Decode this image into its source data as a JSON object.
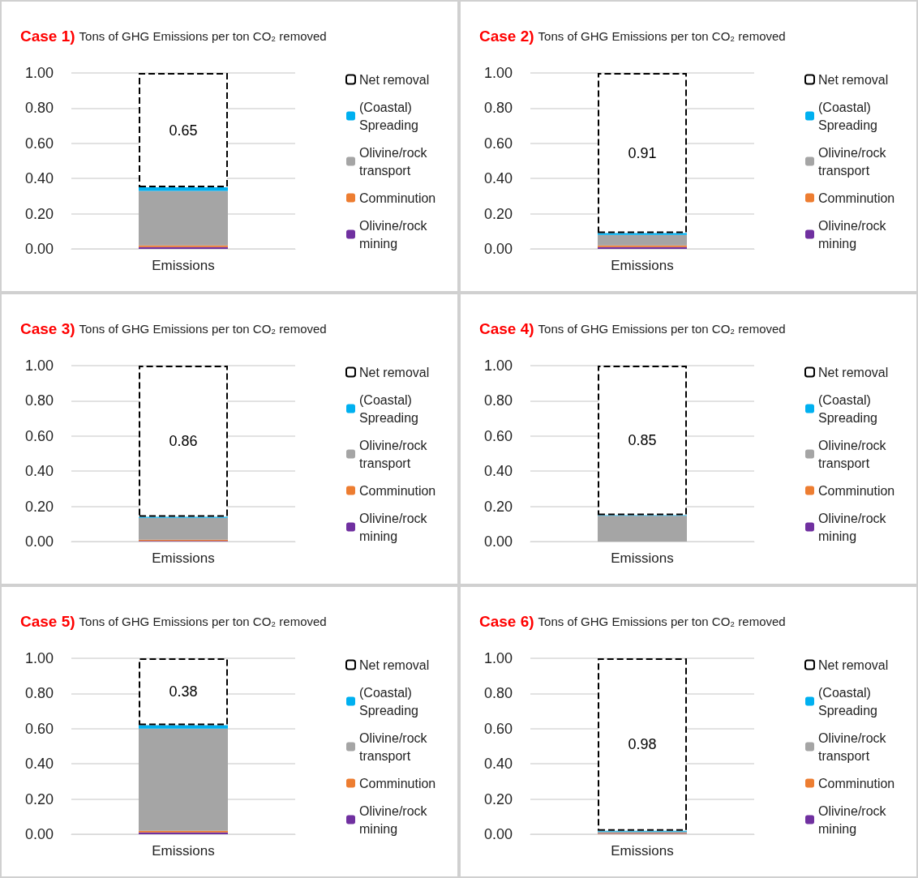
{
  "chart_data": [
    {
      "type": "bar",
      "title": "Case 1)",
      "subtitle": "Tons of GHG Emissions per ton CO₂ removed",
      "categories": [
        "Emissions"
      ],
      "stacked": true,
      "ylim": [
        0,
        1
      ],
      "yticks": [
        {
          "value": 0,
          "label": "0.00"
        },
        {
          "value": 0.2,
          "label": "0.20"
        },
        {
          "value": 0.4,
          "label": "0.40"
        },
        {
          "value": 0.6,
          "label": "0.60"
        },
        {
          "value": 0.8,
          "label": "0.80"
        },
        {
          "value": 1,
          "label": "1.00"
        }
      ],
      "grid": "y",
      "legend": "right",
      "series": [
        {
          "name": "Olivine/rock mining",
          "color": "#7030a0",
          "values": [
            0.01
          ]
        },
        {
          "name": "Comminution",
          "color": "#ed7d31",
          "values": [
            0.01
          ]
        },
        {
          "name": "Olivine/rock transport",
          "color": "#a5a5a5",
          "values": [
            0.31
          ]
        },
        {
          "name": "(Coastal) Spreading",
          "color": "#00b0f0",
          "values": [
            0.02
          ]
        },
        {
          "name": "Net removal",
          "color": "#000000",
          "line_style": "dashed",
          "values": [
            0.65
          ],
          "value_labels": [
            "0.65"
          ]
        }
      ]
    },
    {
      "type": "bar",
      "title": "Case 2)",
      "subtitle": "Tons of GHG Emissions per ton CO₂ removed",
      "categories": [
        "Emissions"
      ],
      "stacked": true,
      "ylim": [
        0,
        1
      ],
      "yticks": [
        {
          "value": 0,
          "label": "0.00"
        },
        {
          "value": 0.2,
          "label": "0.20"
        },
        {
          "value": 0.4,
          "label": "0.40"
        },
        {
          "value": 0.6,
          "label": "0.60"
        },
        {
          "value": 0.8,
          "label": "0.80"
        },
        {
          "value": 1,
          "label": "1.00"
        }
      ],
      "grid": "y",
      "legend": "right",
      "series": [
        {
          "name": "Olivine/rock mining",
          "color": "#7030a0",
          "values": [
            0.01
          ]
        },
        {
          "name": "Comminution",
          "color": "#ed7d31",
          "values": [
            0.01
          ]
        },
        {
          "name": "Olivine/rock transport",
          "color": "#a5a5a5",
          "values": [
            0.06
          ]
        },
        {
          "name": "(Coastal) Spreading",
          "color": "#00b0f0",
          "values": [
            0.01
          ]
        },
        {
          "name": "Net removal",
          "color": "#000000",
          "line_style": "dashed",
          "values": [
            0.91
          ],
          "value_labels": [
            "0.91"
          ]
        }
      ]
    },
    {
      "type": "bar",
      "title": "Case 3)",
      "subtitle": "Tons of GHG Emissions per ton CO₂ removed",
      "categories": [
        "Emissions"
      ],
      "stacked": true,
      "ylim": [
        0,
        1
      ],
      "yticks": [
        {
          "value": 0,
          "label": "0.00"
        },
        {
          "value": 0.2,
          "label": "0.20"
        },
        {
          "value": 0.4,
          "label": "0.40"
        },
        {
          "value": 0.6,
          "label": "0.60"
        },
        {
          "value": 0.8,
          "label": "0.80"
        },
        {
          "value": 1,
          "label": "1.00"
        }
      ],
      "grid": "y",
      "legend": "right",
      "series": [
        {
          "name": "Olivine/rock mining",
          "color": "#7030a0",
          "values": [
            0.003
          ]
        },
        {
          "name": "Comminution",
          "color": "#ed7d31",
          "values": [
            0.007
          ]
        },
        {
          "name": "Olivine/rock transport",
          "color": "#a5a5a5",
          "values": [
            0.125
          ]
        },
        {
          "name": "(Coastal) Spreading",
          "color": "#00b0f0",
          "values": [
            0.005
          ]
        },
        {
          "name": "Net removal",
          "color": "#000000",
          "line_style": "dashed",
          "values": [
            0.86
          ],
          "value_labels": [
            "0.86"
          ]
        }
      ]
    },
    {
      "type": "bar",
      "title": "Case 4)",
      "subtitle": "Tons of GHG Emissions per ton CO₂ removed",
      "categories": [
        "Emissions"
      ],
      "stacked": true,
      "ylim": [
        0,
        1
      ],
      "yticks": [
        {
          "value": 0,
          "label": "0.00"
        },
        {
          "value": 0.2,
          "label": "0.20"
        },
        {
          "value": 0.4,
          "label": "0.40"
        },
        {
          "value": 0.6,
          "label": "0.60"
        },
        {
          "value": 0.8,
          "label": "0.80"
        },
        {
          "value": 1,
          "label": "1.00"
        }
      ],
      "grid": "y",
      "legend": "right",
      "series": [
        {
          "name": "Olivine/rock mining",
          "color": "#7030a0",
          "values": [
            null
          ]
        },
        {
          "name": "Comminution",
          "color": "#ed7d31",
          "values": [
            null
          ]
        },
        {
          "name": "Olivine/rock transport",
          "color": "#a5a5a5",
          "values": [
            0.146
          ]
        },
        {
          "name": "(Coastal) Spreading",
          "color": "#00b0f0",
          "values": [
            0.004
          ]
        },
        {
          "name": "Net removal",
          "color": "#000000",
          "line_style": "dashed",
          "values": [
            0.85
          ],
          "value_labels": [
            "0.85"
          ]
        }
      ]
    },
    {
      "type": "bar",
      "title": "Case 5)",
      "subtitle": "Tons of GHG Emissions per ton CO₂ removed",
      "categories": [
        "Emissions"
      ],
      "stacked": true,
      "ylim": [
        0,
        1
      ],
      "yticks": [
        {
          "value": 0,
          "label": "0.00"
        },
        {
          "value": 0.2,
          "label": "0.20"
        },
        {
          "value": 0.4,
          "label": "0.40"
        },
        {
          "value": 0.6,
          "label": "0.60"
        },
        {
          "value": 0.8,
          "label": "0.80"
        },
        {
          "value": 1,
          "label": "1.00"
        }
      ],
      "grid": "y",
      "legend": "right",
      "series": [
        {
          "name": "Olivine/rock mining",
          "color": "#7030a0",
          "values": [
            0.01
          ]
        },
        {
          "name": "Comminution",
          "color": "#ed7d31",
          "values": [
            0.01
          ]
        },
        {
          "name": "Olivine/rock transport",
          "color": "#a5a5a5",
          "values": [
            0.58
          ]
        },
        {
          "name": "(Coastal) Spreading",
          "color": "#00b0f0",
          "values": [
            0.02
          ]
        },
        {
          "name": "Net removal",
          "color": "#000000",
          "line_style": "dashed",
          "values": [
            0.38
          ],
          "value_labels": [
            "0.38"
          ]
        }
      ]
    },
    {
      "type": "bar",
      "title": "Case 6)",
      "subtitle": "Tons of GHG Emissions per ton CO₂ removed",
      "categories": [
        "Emissions"
      ],
      "stacked": true,
      "ylim": [
        0,
        1
      ],
      "yticks": [
        {
          "value": 0,
          "label": "0.00"
        },
        {
          "value": 0.2,
          "label": "0.20"
        },
        {
          "value": 0.4,
          "label": "0.40"
        },
        {
          "value": 0.6,
          "label": "0.60"
        },
        {
          "value": 0.8,
          "label": "0.80"
        },
        {
          "value": 1,
          "label": "1.00"
        }
      ],
      "grid": "y",
      "legend": "right",
      "series": [
        {
          "name": "Olivine/rock mining",
          "color": "#7030a0",
          "values": [
            0.002
          ]
        },
        {
          "name": "Comminution",
          "color": "#ed7d31",
          "values": [
            0.003
          ]
        },
        {
          "name": "Olivine/rock transport",
          "color": "#a5a5a5",
          "values": [
            0.01
          ]
        },
        {
          "name": "(Coastal) Spreading",
          "color": "#00b0f0",
          "values": [
            0.005
          ]
        },
        {
          "name": "Net removal",
          "color": "#000000",
          "line_style": "dashed",
          "values": [
            0.98
          ],
          "value_labels": [
            "0.98"
          ]
        }
      ]
    }
  ]
}
